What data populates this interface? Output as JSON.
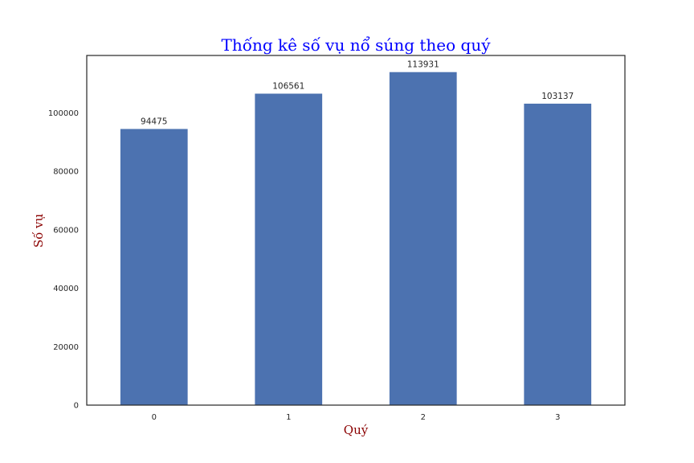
{
  "chart_data": {
    "type": "bar",
    "title": "Thống kê số vụ nổ súng theo quý",
    "xlabel": "Quý",
    "ylabel": "Số vụ",
    "categories": [
      "0",
      "1",
      "2",
      "3"
    ],
    "values": [
      94475,
      106561,
      113931,
      103137
    ],
    "data_labels": [
      "94475",
      "106561",
      "113931",
      "103137"
    ],
    "yticks": [
      0,
      20000,
      40000,
      60000,
      80000,
      100000
    ],
    "ytick_labels": [
      "0",
      "20000",
      "40000",
      "60000",
      "80000",
      "100000"
    ],
    "ylim": [
      0,
      119627
    ],
    "grid": false,
    "colors": {
      "bar": "#4c72b0",
      "title": "#0000ff",
      "axis_label": "#8b0000",
      "frame": "#262626"
    }
  }
}
